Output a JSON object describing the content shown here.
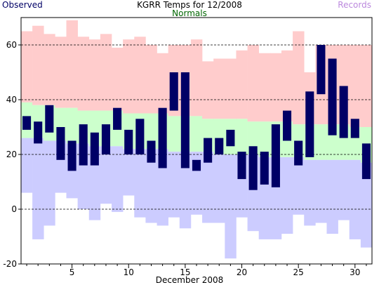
{
  "header": {
    "title": "KGRR Temps for 12/2008",
    "observed_label": "Observed",
    "normals_label": "Normals",
    "records_label": "Records"
  },
  "colors": {
    "observed": "#000066",
    "normals": "#ccffcc",
    "records_high": "#ffcccc",
    "records_low": "#ccccff",
    "normals_text": "#006600",
    "records_text": "#bb88dd"
  },
  "chart_data": {
    "type": "bar",
    "title": "KGRR Temps for 12/2008",
    "xlabel": "December 2008",
    "ylabel": "",
    "xlim": [
      0.5,
      31.5
    ],
    "ylim": [
      -20,
      70
    ],
    "x_ticks": [
      5,
      10,
      15,
      20,
      25,
      30
    ],
    "y_ticks": [
      -20,
      0,
      20,
      40,
      60
    ],
    "grid_dashed_y": [
      0,
      20,
      40,
      60
    ],
    "days": [
      1,
      2,
      3,
      4,
      5,
      6,
      7,
      8,
      9,
      10,
      11,
      12,
      13,
      14,
      15,
      16,
      17,
      18,
      19,
      20,
      21,
      22,
      23,
      24,
      25,
      26,
      27,
      28,
      29,
      30,
      31
    ],
    "series": [
      {
        "name": "Observed",
        "high": [
          34,
          32,
          38,
          30,
          25,
          31,
          28,
          31,
          37,
          29,
          33,
          25,
          37,
          50,
          50,
          18,
          26,
          26,
          29,
          21,
          23,
          21,
          31,
          36,
          25,
          43,
          60,
          55,
          45,
          33,
          24
        ],
        "low": [
          29,
          24,
          28,
          18,
          14,
          16,
          16,
          20,
          29,
          20,
          20,
          17,
          15,
          36,
          15,
          14,
          17,
          20,
          23,
          11,
          7,
          9,
          8,
          25,
          16,
          19,
          42,
          27,
          26,
          26,
          11
        ]
      },
      {
        "name": "Normals",
        "high": [
          39,
          38,
          38,
          37,
          37,
          36,
          36,
          36,
          36,
          35,
          35,
          35,
          35,
          34,
          34,
          34,
          33,
          33,
          33,
          33,
          32,
          32,
          32,
          32,
          31,
          31,
          31,
          31,
          31,
          30,
          30
        ],
        "low": [
          26,
          26,
          25,
          25,
          24,
          24,
          23,
          23,
          23,
          22,
          22,
          22,
          22,
          21,
          21,
          21,
          21,
          20,
          20,
          20,
          20,
          19,
          19,
          19,
          19,
          18,
          18,
          18,
          18,
          18,
          17
        ]
      },
      {
        "name": "Records",
        "high": [
          65,
          67,
          64,
          63,
          69,
          63,
          62,
          64,
          59,
          62,
          63,
          60,
          57,
          60,
          60,
          62,
          54,
          55,
          55,
          58,
          60,
          57,
          57,
          58,
          65,
          50,
          60,
          60,
          60,
          60,
          60
        ],
        "low": [
          6,
          -11,
          -6,
          6,
          4,
          0,
          -4,
          2,
          -1,
          5,
          -3,
          -5,
          -6,
          -3,
          -7,
          -2,
          -5,
          -5,
          -18,
          -3,
          -8,
          -11,
          -11,
          -9,
          -2,
          -6,
          -5,
          -9,
          -4,
          -11,
          -14
        ]
      }
    ]
  }
}
